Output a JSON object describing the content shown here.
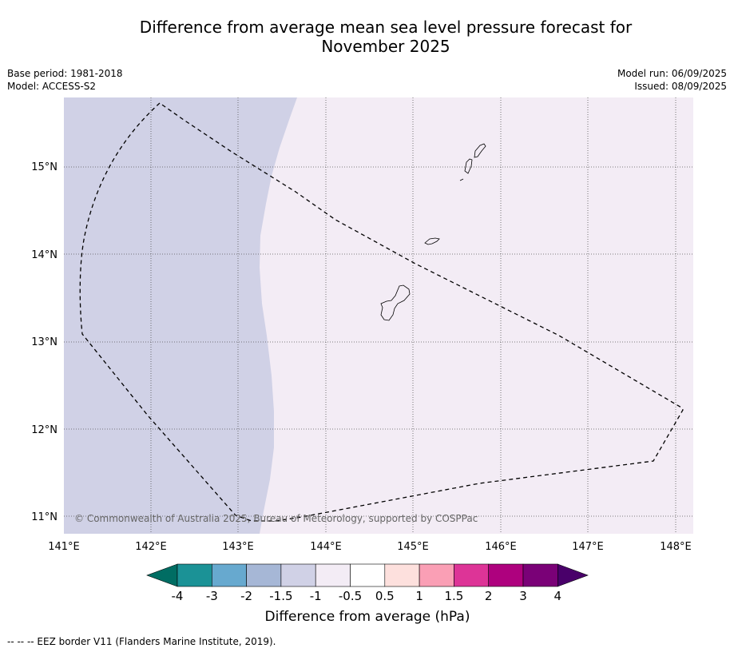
{
  "title_line1": "Difference from average mean sea level pressure forecast for",
  "title_line2": "November 2025",
  "base_period": "Base period: 1981-2018",
  "model": "Model: ACCESS-S2",
  "model_run": "Model run: 06/09/2025",
  "issued": "Issued: 08/09/2025",
  "copyright": "© Commonwealth of Australia 2025, Bureau of Meteorology, supported by COSPPac",
  "footer": "--  --  -- EEZ border V11 (Flanders Marine Institute, 2019).",
  "map": {
    "lon_labels": [
      "141°E",
      "142°E",
      "143°E",
      "144°E",
      "145°E",
      "146°E",
      "147°E",
      "148°E"
    ],
    "lat_labels": [
      "15°N",
      "14°N",
      "13°N",
      "12°N",
      "11°N"
    ],
    "bands": [
      {
        "range": "-1.5 to -1",
        "color": "#d0d1e6"
      },
      {
        "range": "-1 to -0.5",
        "color": "#f3ecf5"
      }
    ]
  },
  "colorbar": {
    "title": "Difference from average (hPa)",
    "tick_labels": [
      "-4",
      "-3",
      "-2",
      "-1.5",
      "-1",
      "-0.5",
      "0.5",
      "1",
      "1.5",
      "2",
      "3",
      "4"
    ],
    "colors": [
      "#006d63",
      "#1b9296",
      "#67a9cf",
      "#a6b7d6",
      "#d0d1e6",
      "#f3ecf5",
      "#ffffff",
      "#fde0dd",
      "#fa9fb5",
      "#dd3497",
      "#ae017e",
      "#7a0177",
      "#49006a"
    ]
  }
}
